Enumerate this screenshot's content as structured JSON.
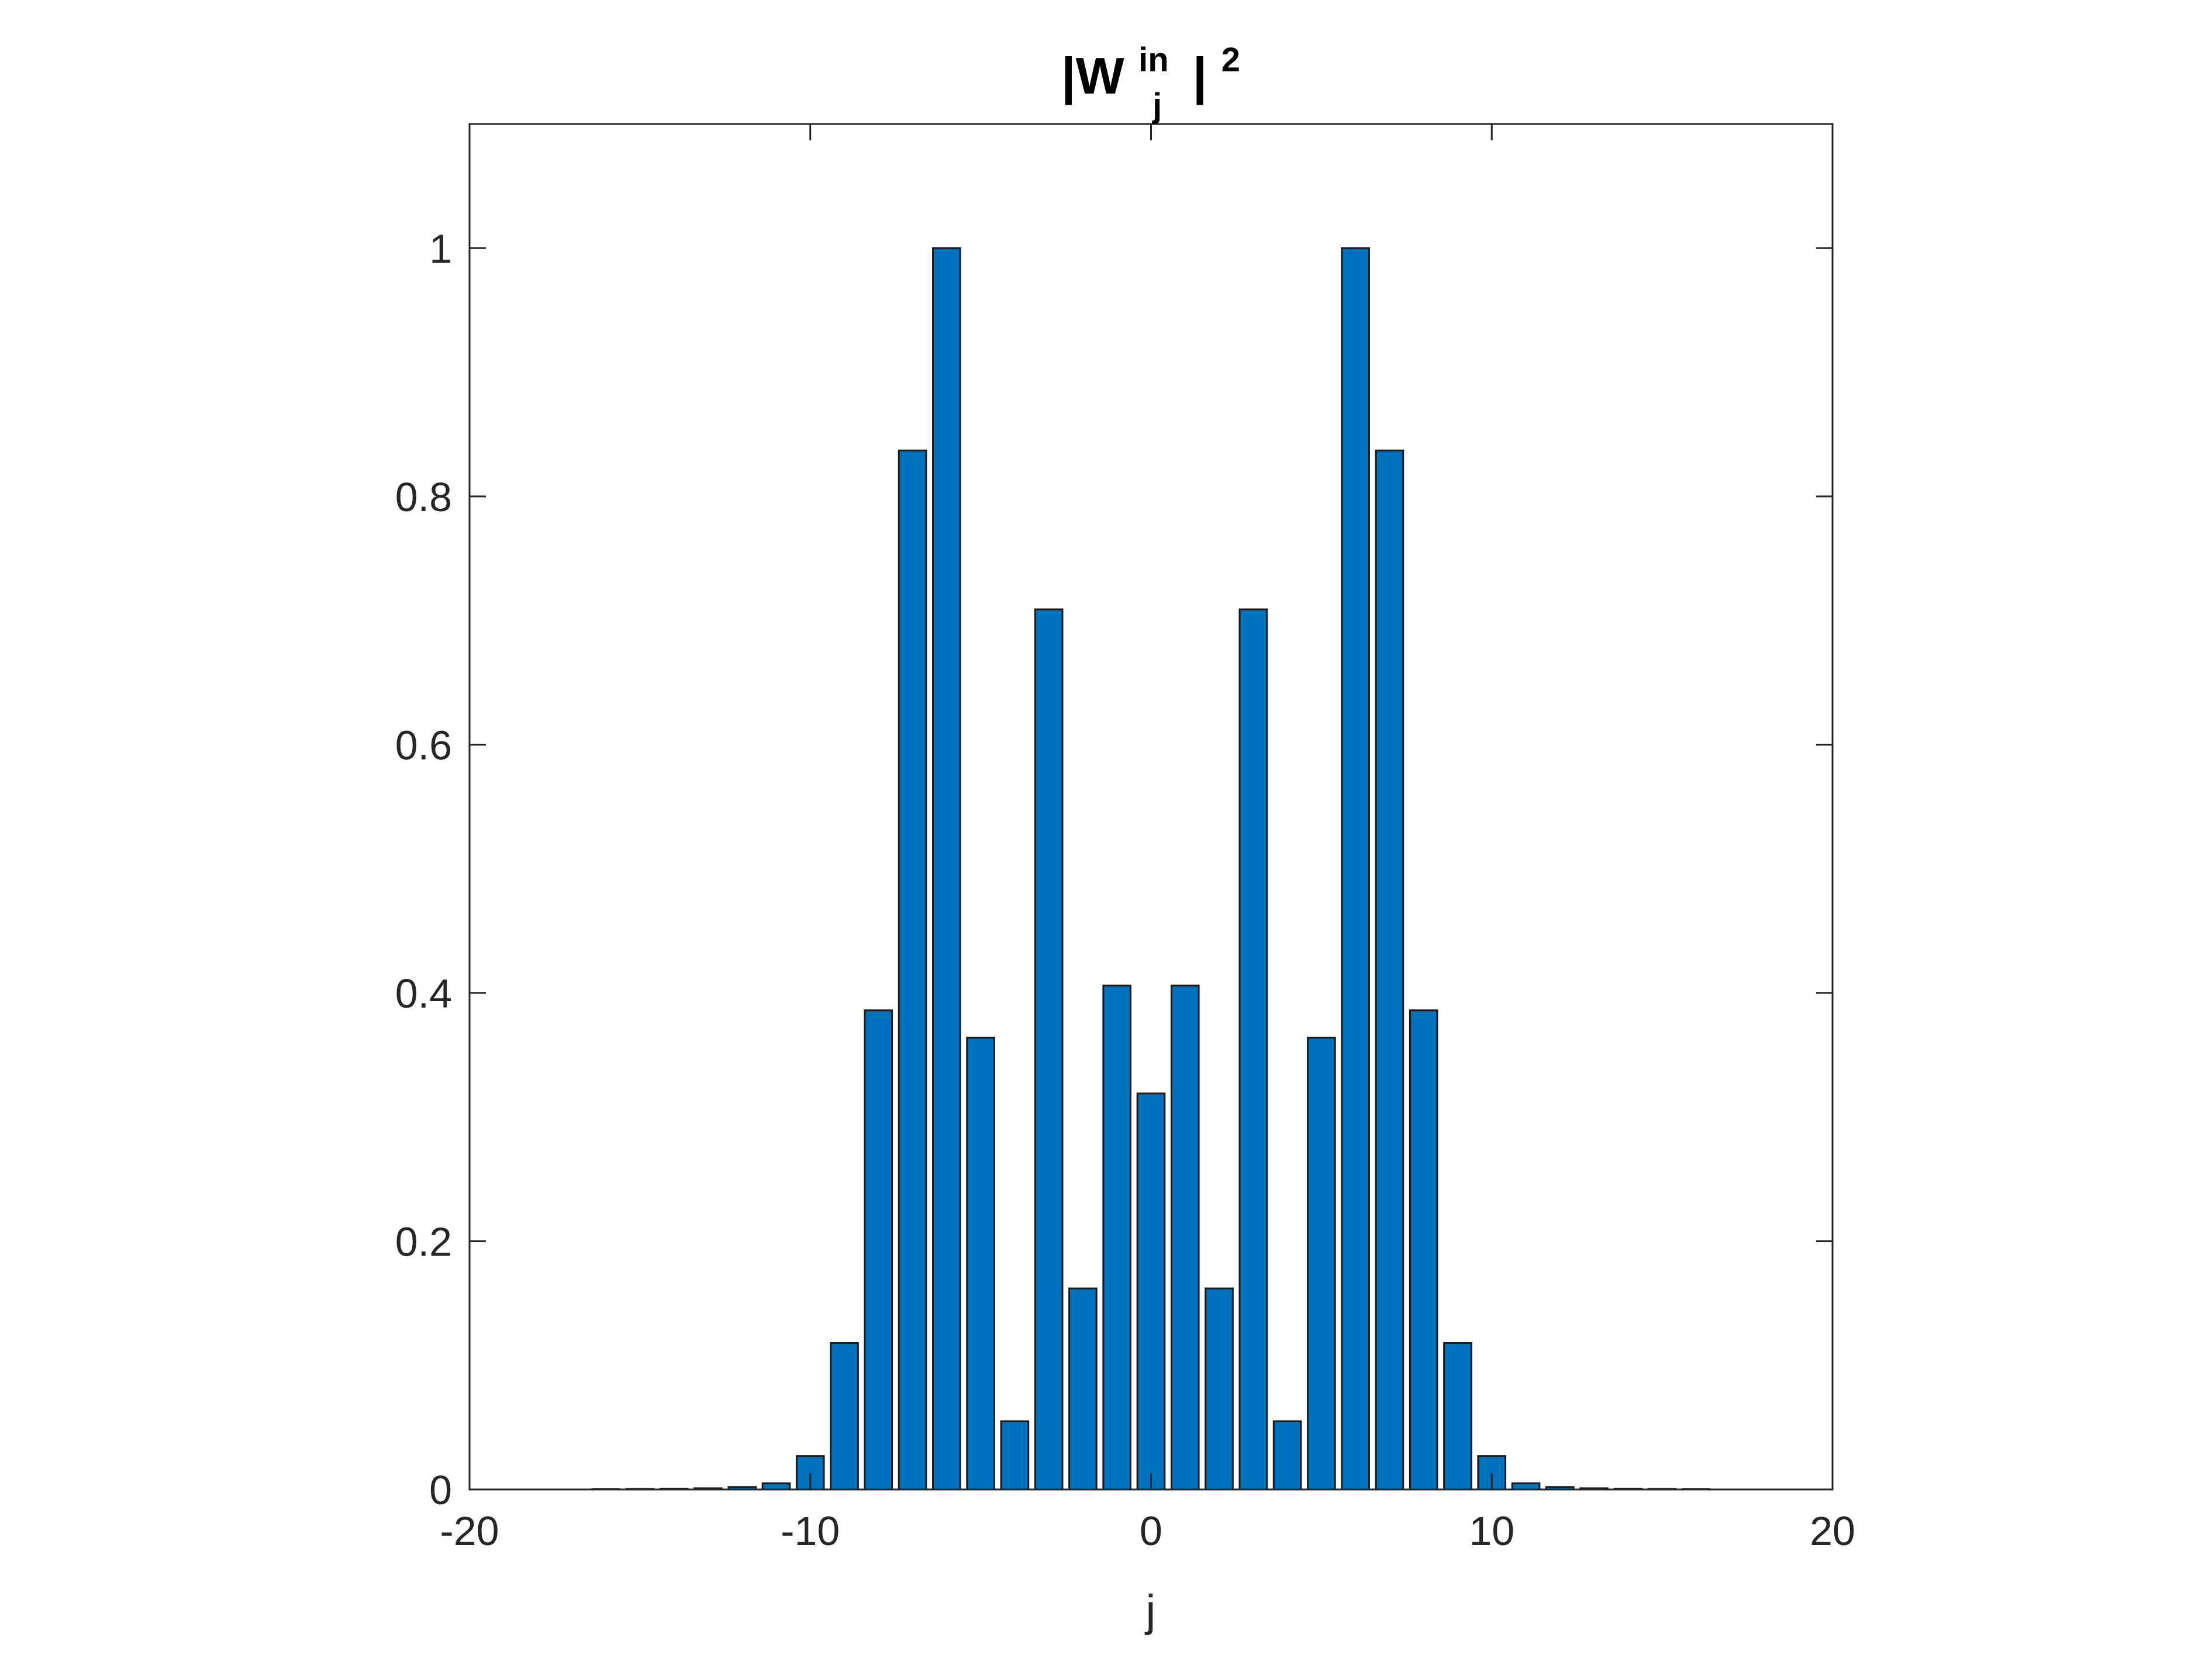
{
  "chart_data": {
    "type": "bar",
    "title": {
      "base": "|W",
      "superscript": "in",
      "subscript": "j",
      "close": "|",
      "power": "2"
    },
    "xlabel": "j",
    "ylabel": "",
    "xlim": [
      -20,
      20
    ],
    "ylim": [
      0,
      1.1
    ],
    "xticks": [
      "-20",
      "-10",
      "0",
      "10",
      "20"
    ],
    "yticks": [
      "0",
      "0.2",
      "0.4",
      "0.6",
      "0.8",
      "1"
    ],
    "grid": false,
    "bar_color": "#0072BD",
    "edge_color": "#1a1a1a",
    "x": [
      -16,
      -15,
      -14,
      -13,
      -12,
      -11,
      -10,
      -9,
      -8,
      -7,
      -6,
      -5,
      -4,
      -3,
      -2,
      -1,
      0,
      1,
      2,
      3,
      4,
      5,
      6,
      7,
      8,
      9,
      10,
      11,
      12,
      13,
      14,
      15,
      16
    ],
    "values": [
      0.0003,
      0.0005,
      0.0007,
      0.001,
      0.002,
      0.005,
      0.027,
      0.118,
      0.386,
      0.837,
      1.0,
      0.364,
      0.055,
      0.709,
      0.162,
      0.406,
      0.319,
      0.406,
      0.162,
      0.709,
      0.055,
      0.364,
      1.0,
      0.837,
      0.386,
      0.118,
      0.027,
      0.005,
      0.002,
      0.001,
      0.0007,
      0.0005,
      0.0003
    ]
  }
}
